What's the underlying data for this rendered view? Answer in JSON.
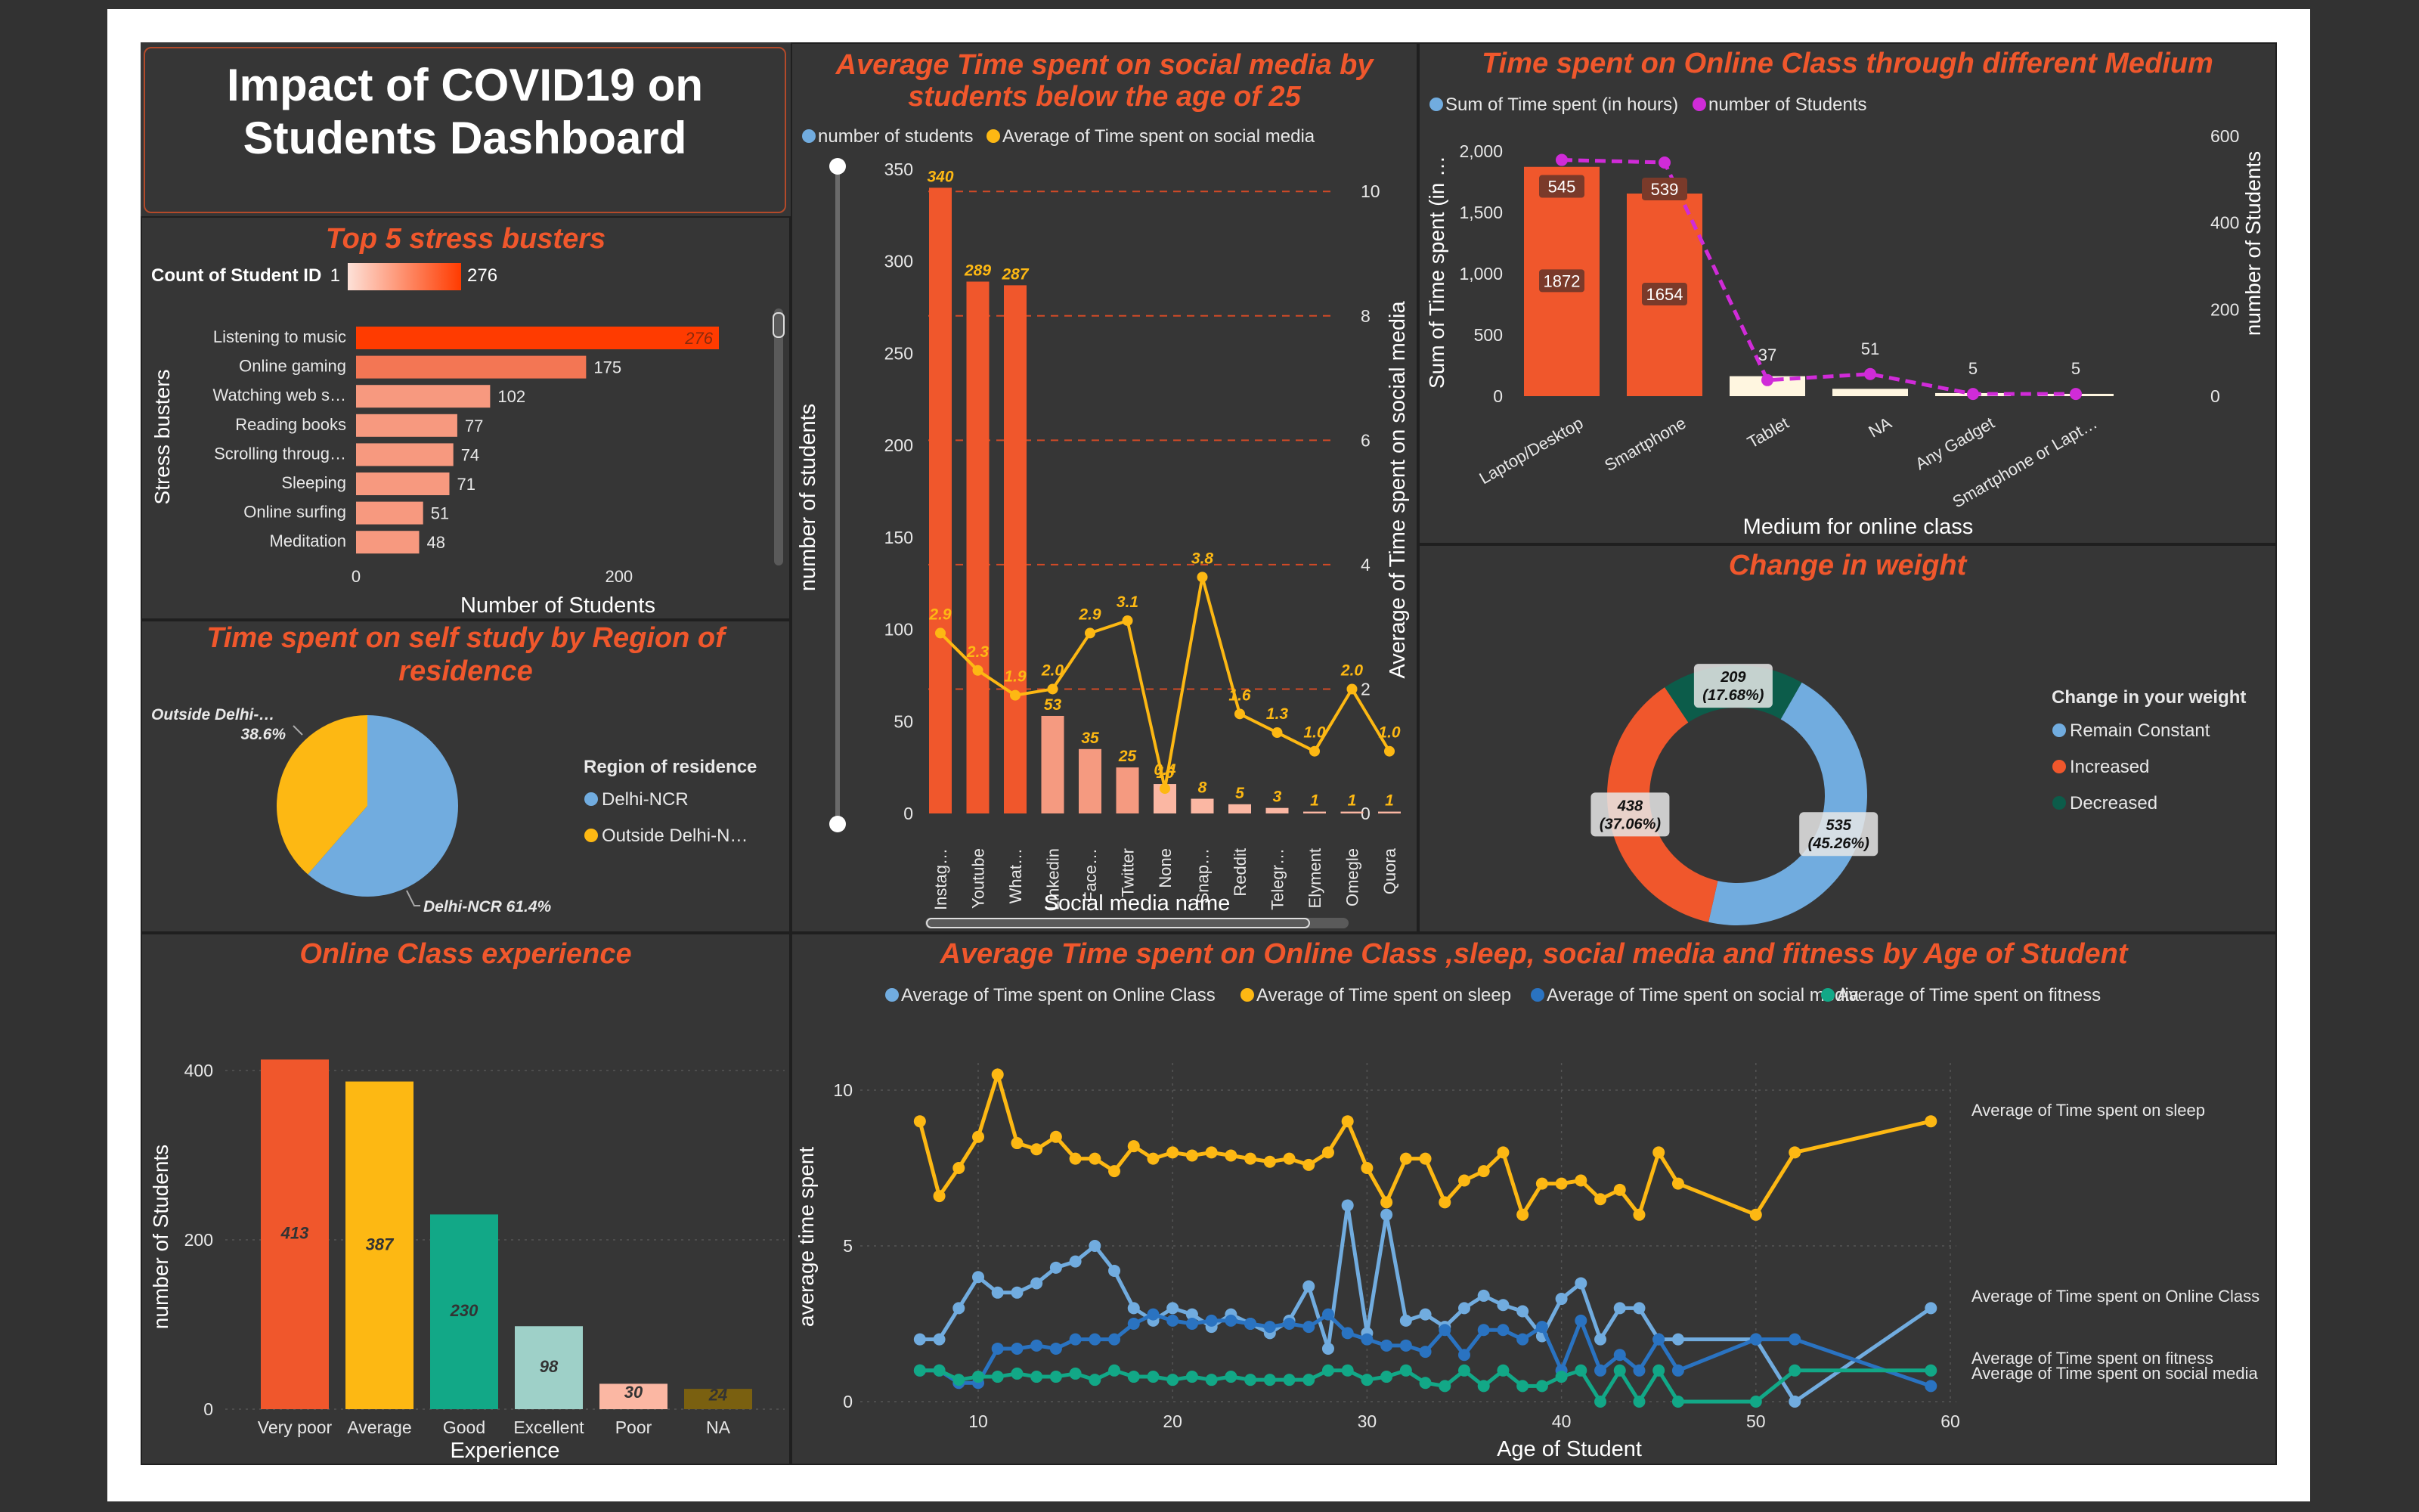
{
  "dashboard_title": "Impact of COVID19 on Students Dashboard",
  "colors": {
    "orange": "#f0572c",
    "yellow": "#fdb813",
    "blue": "#71acdf",
    "teal": "#12a887",
    "magenta": "#d02bd8",
    "dark_blue": "#2a73c1",
    "salmon": "#f59a80"
  },
  "stress": {
    "title": "Top 5 stress busters",
    "legend_label": "Count of Student ID",
    "legend_min": "1",
    "legend_max": "276",
    "ylabel": "Stress busters",
    "xlabel": "Number of Students",
    "ticks": [
      "0",
      "200"
    ]
  },
  "pie": {
    "title": "Time spent on self study by Region of residence",
    "legend_title": "Region of residence",
    "legend_items": [
      "Delhi-NCR",
      "Outside Delhi-N…"
    ],
    "label_outside": "Outside Delhi-…",
    "label_outside_pct": "38.6%",
    "label_delhi": "Delhi-NCR 61.4%"
  },
  "social": {
    "title_line1": "Average Time spent on social media by",
    "title_line2": "students below the age of 25",
    "legend": [
      "number of students",
      "Average of Time spent on social media"
    ],
    "ylabel_left": "number of students",
    "ylabel_right": "Average of Time spent on social media",
    "xlabel": "Social media name",
    "left_ticks": [
      "0",
      "50",
      "100",
      "150",
      "200",
      "250",
      "300",
      "350"
    ],
    "right_ticks": [
      "0",
      "2",
      "4",
      "6",
      "8",
      "10"
    ]
  },
  "medium": {
    "title": "Time spent on Online Class through different Medium",
    "legend": [
      "Sum of Time spent (in hours)",
      "number of Students"
    ],
    "ylabel_left": "Sum of Time spent (in …",
    "ylabel_right": "number of Students",
    "xlabel": "Medium for online class",
    "left_ticks": [
      "0",
      "500",
      "1,000",
      "1,500",
      "2,000"
    ],
    "right_ticks": [
      "0",
      "200",
      "400",
      "600"
    ]
  },
  "weight": {
    "title": "Change in weight",
    "legend_title": "Change in your weight",
    "legend_items": [
      "Remain Constant",
      "Increased",
      "Decreased"
    ]
  },
  "experience": {
    "title": "Online Class experience",
    "ylabel": "number of Students",
    "xlabel": "Experience",
    "ticks": [
      "0",
      "200",
      "400"
    ]
  },
  "age": {
    "title": "Average Time spent on Online Class ,sleep, social media and fitness by Age of Student",
    "legend": [
      "Average of Time spent on Online Class",
      "Average of Time spent on sleep",
      "Average of Time spent on social media",
      "Average of Time spent on fitness"
    ],
    "ylabel": "average time spent",
    "xlabel": "Age of Student",
    "x_ticks": [
      "10",
      "20",
      "30",
      "40",
      "50",
      "60"
    ],
    "y_ticks": [
      "0",
      "5",
      "10"
    ],
    "end_labels": [
      "Average of Time spent on sleep",
      "Average of Time spent on Online Class",
      "Average of Time spent on fitness",
      "Average of Time spent on social media"
    ]
  },
  "chart_data": [
    {
      "type": "bar",
      "title": "Top 5 stress busters",
      "categories": [
        "Listening to music",
        "Online gaming",
        "Watching web s…",
        "Reading books",
        "Scrolling throug…",
        "Sleeping",
        "Online surfing",
        "Meditation"
      ],
      "values": [
        276,
        175,
        102,
        77,
        74,
        71,
        51,
        48
      ],
      "xlabel": "Number of Students",
      "ylabel": "Stress busters"
    },
    {
      "type": "pie",
      "title": "Time spent on self study by Region of residence",
      "categories": [
        "Delhi-NCR",
        "Outside Delhi-N…"
      ],
      "values": [
        61.4,
        38.6
      ]
    },
    {
      "type": "bar",
      "title": "Average Time spent on social media by students below the age of 25",
      "categories": [
        "Instag…",
        "Youtube",
        "What…",
        "Linkedin",
        "Face…",
        "Twitter",
        "None",
        "Snap…",
        "Reddit",
        "Telegr…",
        "Elyment",
        "Omegle",
        "Quora"
      ],
      "series": [
        {
          "name": "number of students",
          "values": [
            340,
            289,
            287,
            53,
            35,
            25,
            16,
            8,
            5,
            3,
            1,
            1,
            1
          ]
        },
        {
          "name": "Average of Time spent on social media",
          "values": [
            2.9,
            2.3,
            1.9,
            2.0,
            2.9,
            3.1,
            0.4,
            3.8,
            1.6,
            1.3,
            1.0,
            2.0,
            1.0
          ]
        }
      ],
      "ylim": [
        0,
        350
      ],
      "y2lim": [
        0,
        10
      ]
    },
    {
      "type": "bar",
      "title": "Time spent on Online Class through different Medium",
      "categories": [
        "Laptop/Desktop",
        "Smartphone",
        "Tablet",
        "NA",
        "Any Gadget",
        "Smartphone or Lapt…"
      ],
      "series": [
        {
          "name": "Sum of Time spent (in hours)",
          "values": [
            1872,
            1654,
            163,
            60,
            25,
            19
          ]
        },
        {
          "name": "number of Students",
          "values": [
            545,
            539,
            37,
            51,
            5,
            5
          ]
        }
      ],
      "ylim": [
        0,
        2000
      ],
      "y2lim": [
        0,
        600
      ]
    },
    {
      "type": "pie",
      "title": "Change in weight",
      "categories": [
        "Remain Constant",
        "Increased",
        "Decreased"
      ],
      "values": [
        535,
        438,
        209
      ],
      "labels": [
        "535 (45.26%)",
        "438 (37.06%)",
        "209 (17.68%)"
      ]
    },
    {
      "type": "bar",
      "title": "Online Class experience",
      "categories": [
        "Very poor",
        "Average",
        "Good",
        "Excellent",
        "Poor",
        "NA"
      ],
      "values": [
        413,
        387,
        230,
        98,
        30,
        24
      ],
      "ylim": [
        0,
        450
      ]
    },
    {
      "type": "line",
      "title": "Average Time spent on Online Class ,sleep, social media and fitness by Age of Student",
      "xlabel": "Age of Student",
      "ylabel": "average time spent",
      "xlim": [
        7,
        60
      ],
      "ylim": [
        0,
        11
      ],
      "x": [
        7,
        8,
        9,
        10,
        11,
        12,
        13,
        14,
        15,
        16,
        17,
        18,
        19,
        20,
        21,
        22,
        23,
        24,
        25,
        26,
        27,
        28,
        29,
        30,
        31,
        32,
        33,
        34,
        35,
        36,
        37,
        38,
        39,
        40,
        41,
        42,
        43,
        44,
        45,
        46,
        50,
        52,
        59
      ],
      "series": [
        {
          "name": "Average of Time spent on Online Class",
          "values": [
            2,
            2,
            3,
            4,
            3.5,
            3.5,
            3.8,
            4.3,
            4.5,
            5,
            4.2,
            3,
            2.6,
            3,
            2.8,
            2.4,
            2.8,
            2.5,
            2.2,
            2.6,
            3.7,
            1.7,
            6.3,
            2.2,
            6,
            2.6,
            2.8,
            2.4,
            3,
            3.4,
            3.1,
            2.9,
            2.1,
            3.3,
            3.8,
            2,
            3,
            3,
            2,
            2,
            2,
            0,
            3
          ]
        },
        {
          "name": "Average of Time spent on sleep",
          "values": [
            9,
            6.6,
            7.5,
            8.5,
            10.5,
            8.3,
            8.1,
            8.5,
            7.8,
            7.8,
            7.4,
            8.2,
            7.8,
            8,
            7.9,
            8,
            7.9,
            7.8,
            7.7,
            7.8,
            7.6,
            8,
            9,
            7.5,
            6.4,
            7.8,
            7.8,
            6.4,
            7.1,
            7.4,
            8,
            6,
            7,
            7,
            7.1,
            6.5,
            6.8,
            6,
            8,
            7,
            6,
            8,
            9
          ]
        },
        {
          "name": "Average of Time spent on social media",
          "values": [
            1,
            1,
            0.6,
            0.6,
            1.7,
            1.7,
            1.8,
            1.7,
            2,
            2,
            2,
            2.5,
            2.8,
            2.6,
            2.5,
            2.6,
            2.6,
            2.5,
            2.4,
            2.5,
            2.4,
            2.8,
            2.2,
            2,
            1.8,
            1.8,
            1.6,
            2.3,
            1.5,
            2.3,
            2.3,
            2,
            2.4,
            1,
            2.6,
            1,
            1.5,
            1,
            2,
            1,
            2,
            2,
            0.5
          ]
        },
        {
          "name": "Average of Time spent on fitness",
          "values": [
            1,
            1,
            0.7,
            0.8,
            0.8,
            0.9,
            0.8,
            0.8,
            0.9,
            0.7,
            1,
            0.8,
            0.8,
            0.7,
            0.8,
            0.7,
            0.8,
            0.7,
            0.7,
            0.7,
            0.7,
            1,
            1,
            0.7,
            0.8,
            1,
            0.6,
            0.5,
            1,
            0.5,
            1,
            0.5,
            0.5,
            0.8,
            1,
            0,
            1,
            0,
            1,
            0,
            0,
            1,
            1
          ]
        }
      ]
    }
  ]
}
